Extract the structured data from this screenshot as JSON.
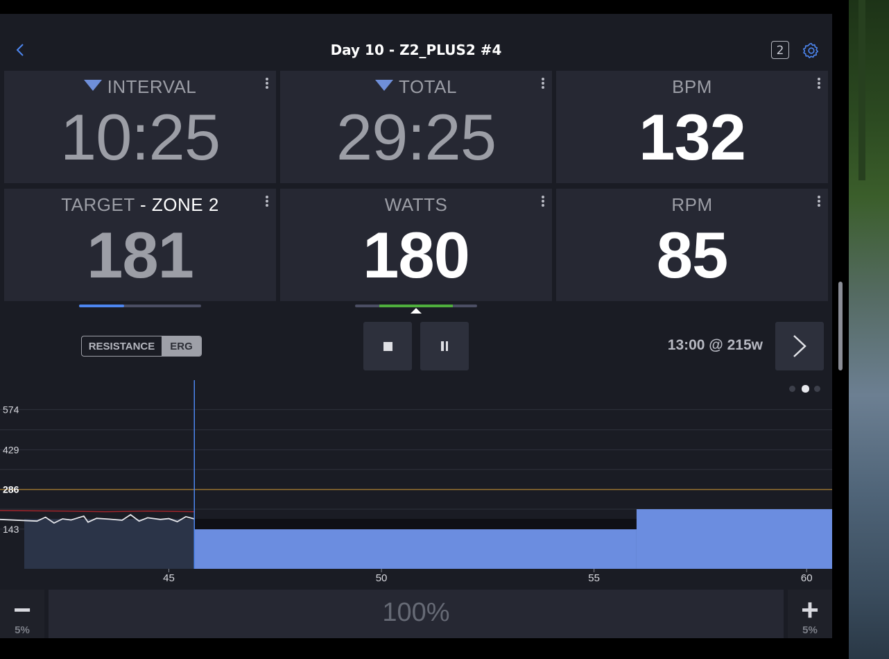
{
  "header": {
    "title": "Day 10 - Z2_PLUS2 #4",
    "badge": "2",
    "back_icon": "chevron-left-icon",
    "settings_icon": "gear-icon"
  },
  "tiles": {
    "interval": {
      "label": "INTERVAL",
      "value": "10:25",
      "indicator": "triangle-down-icon"
    },
    "total": {
      "label": "TOTAL",
      "value": "29:25",
      "indicator": "triangle-down-icon"
    },
    "bpm": {
      "label": "BPM",
      "value": "132"
    },
    "target": {
      "label": "TARGET",
      "separator": " - ",
      "zone": "ZONE 2",
      "value": "181",
      "progress_fraction": 0.37
    },
    "watts": {
      "label": "WATTS",
      "value": "180",
      "range_fraction": [
        0.2,
        0.8
      ],
      "marker_fraction": 0.5
    },
    "rpm": {
      "label": "RPM",
      "value": "85"
    }
  },
  "controls": {
    "mode_options": [
      "RESISTANCE",
      "ERG"
    ],
    "mode_selected": "ERG",
    "stop_icon": "stop-icon",
    "pause_icon": "pause-icon",
    "next_interval": "13:00 @ 215w",
    "next_icon": "chevron-right-icon"
  },
  "chart_data": {
    "type": "area",
    "y_ticks": [
      "574",
      "429",
      "286",
      "143"
    ],
    "x_ticks": [
      "45",
      "50",
      "55",
      "60"
    ],
    "ylim": [
      0,
      650
    ],
    "xlim": [
      41.6,
      60.6
    ],
    "current_time": 45.6,
    "ftp_line": 286,
    "target_segments": [
      {
        "start": 41.6,
        "end": 45.6,
        "watts": 180,
        "completed": true
      },
      {
        "start": 45.6,
        "end": 56,
        "watts": 180,
        "completed": false
      },
      {
        "start": 56,
        "end": 60.6,
        "watts": 215,
        "completed": false
      }
    ],
    "power_series": [
      [
        41.6,
        178
      ],
      [
        41.9,
        172
      ],
      [
        42.1,
        186
      ],
      [
        42.3,
        165
      ],
      [
        42.5,
        180
      ],
      [
        42.7,
        176
      ],
      [
        43.0,
        190
      ],
      [
        43.1,
        168
      ],
      [
        43.3,
        182
      ],
      [
        43.6,
        179
      ],
      [
        43.9,
        175
      ],
      [
        44.1,
        195
      ],
      [
        44.3,
        172
      ],
      [
        44.5,
        184
      ],
      [
        44.8,
        178
      ],
      [
        45.0,
        181
      ],
      [
        45.2,
        170
      ],
      [
        45.4,
        188
      ],
      [
        45.6,
        180
      ]
    ],
    "hr_series": [
      [
        41.6,
        210
      ],
      [
        42.5,
        208
      ],
      [
        43.5,
        206
      ],
      [
        44.5,
        208
      ],
      [
        45.6,
        206
      ]
    ],
    "page_dots": 3,
    "active_page": 1
  },
  "bottom": {
    "minus_symbol": "−",
    "plus_symbol": "+",
    "step_label": "5%",
    "intensity": "100%"
  },
  "colors": {
    "accent": "#4d86f0",
    "target_fill": "#6b8de0",
    "completed_fill": "#2b3448",
    "ftp_line": "#9b7431",
    "hr_line": "#a3252b",
    "zone_green": "#4fae3d"
  }
}
